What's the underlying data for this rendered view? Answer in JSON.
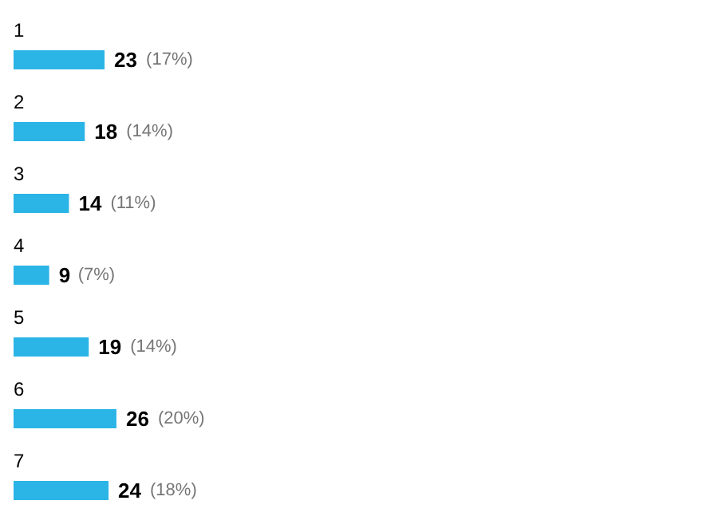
{
  "chart_data": {
    "type": "bar",
    "orientation": "horizontal",
    "categories": [
      "1",
      "2",
      "3",
      "4",
      "5",
      "6",
      "7"
    ],
    "values": [
      23,
      18,
      14,
      9,
      19,
      26,
      24
    ],
    "color": "#2bb4e6",
    "data_labels": true,
    "annotations": [
      {
        "text": "(17%)",
        "x": 23,
        "y": "1"
      },
      {
        "text": "(14%)",
        "x": 18,
        "y": "2"
      },
      {
        "text": "(11%)",
        "x": 14,
        "y": "3"
      },
      {
        "text": "(7%)",
        "x": 9,
        "y": "4"
      },
      {
        "text": "(14%)",
        "x": 19,
        "y": "5"
      },
      {
        "text": "(20%)",
        "x": 26,
        "y": "6"
      },
      {
        "text": "(18%)",
        "x": 24,
        "y": "7"
      }
    ]
  }
}
